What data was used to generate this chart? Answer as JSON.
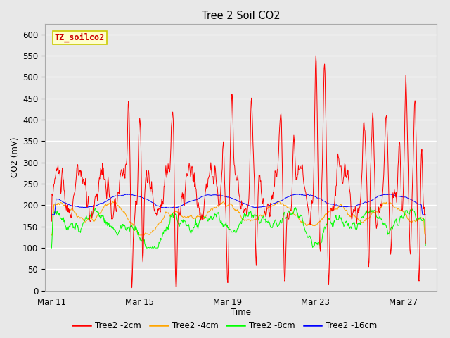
{
  "title": "Tree 2 Soil CO2",
  "xlabel": "Time",
  "ylabel": "CO2 (mV)",
  "ylim": [
    0,
    625
  ],
  "yticks": [
    0,
    50,
    100,
    150,
    200,
    250,
    300,
    350,
    400,
    450,
    500,
    550,
    600
  ],
  "xtick_positions": [
    0,
    4,
    8,
    12,
    16
  ],
  "xtick_labels": [
    "Mar 11",
    "Mar 15",
    "Mar 19",
    "Mar 23",
    "Mar 27"
  ],
  "bg_color": "#e8e8e8",
  "plot_bg_color": "#e8e8e8",
  "grid_color": "white",
  "series_colors": [
    "red",
    "orange",
    "lime",
    "blue"
  ],
  "series_labels": [
    "Tree2 -2cm",
    "Tree2 -4cm",
    "Tree2 -8cm",
    "Tree2 -16cm"
  ],
  "watermark_text": "TZ_soilco2",
  "watermark_fg": "#cc0000",
  "watermark_bg": "#ffffcc",
  "watermark_border": "#cccc00"
}
